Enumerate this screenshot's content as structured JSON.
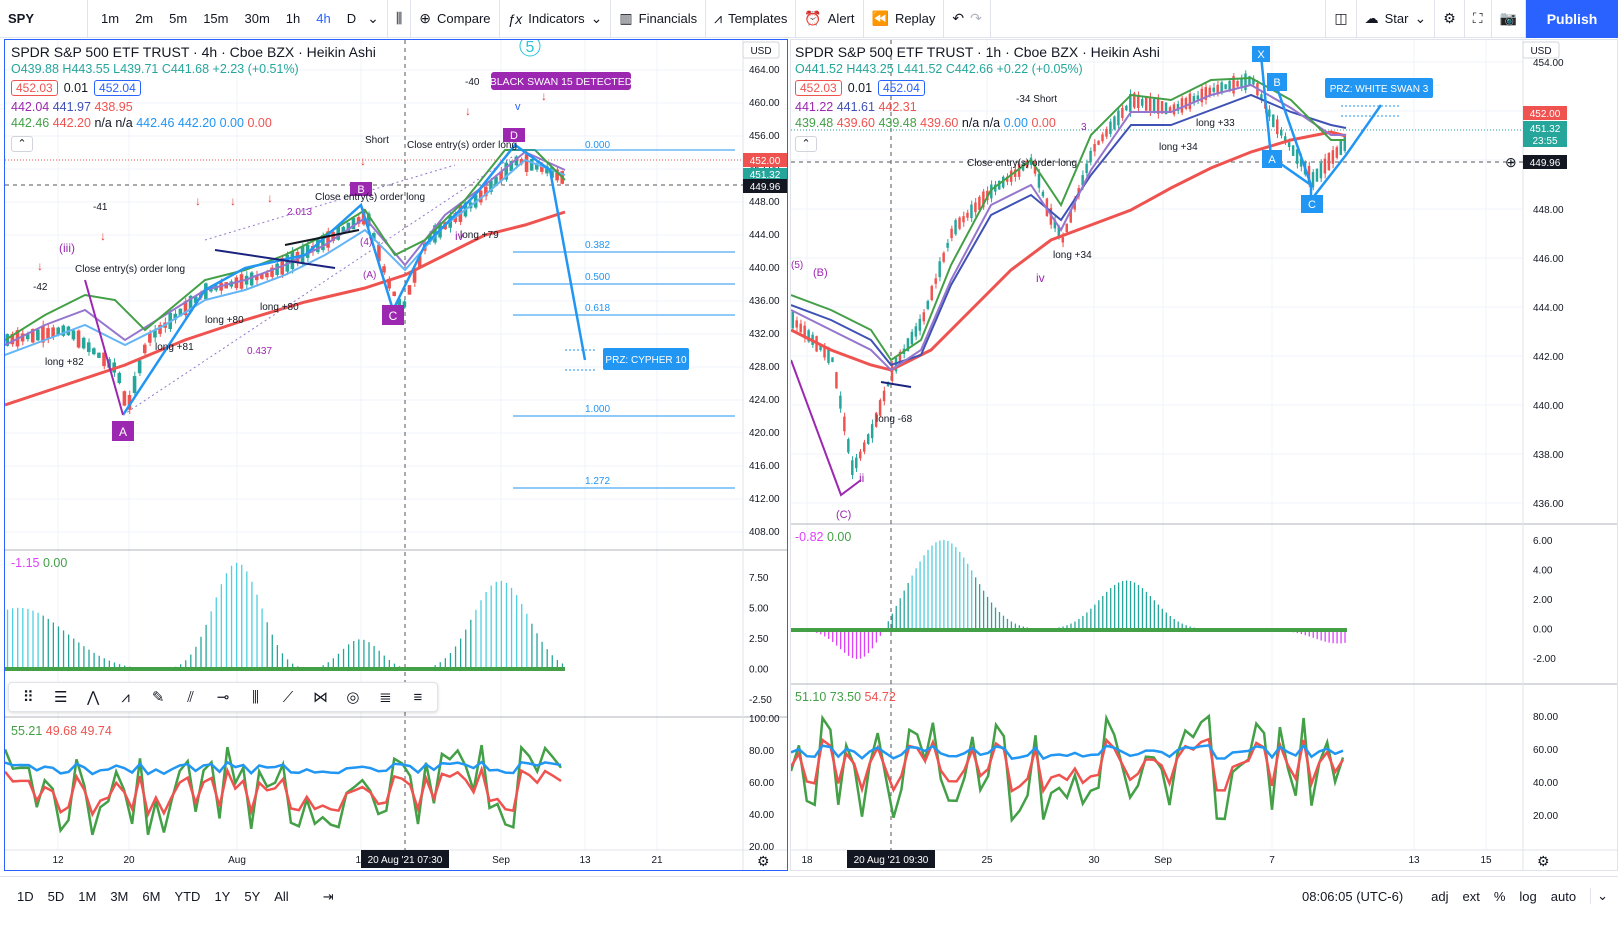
{
  "toolbar": {
    "symbol": "SPY",
    "intervals": [
      "1m",
      "2m",
      "5m",
      "15m",
      "30m",
      "1h",
      "4h",
      "D"
    ],
    "active_interval": "4h",
    "compare": "Compare",
    "indicators": "Indicators",
    "financials": "Financials",
    "templates": "Templates",
    "alert": "Alert",
    "replay": "Replay",
    "star": "Star",
    "publish": "Publish"
  },
  "left_chart": {
    "title": "SPDR S&P 500 ETF TRUST · 4h · Cboe BZX · Heikin Ashi",
    "ohlc": "O439.88 H443.55 L439.71 C441.68 +2.23 (+0.51%)",
    "box1": "452.03",
    "step": "0.01",
    "box2": "452.04",
    "ma_row1": [
      "442.04",
      "441.97",
      "438.95"
    ],
    "ma_row2": [
      "442.46",
      "442.20",
      "n/a",
      "n/a",
      "442.46",
      "442.20",
      "0.00",
      "0.00"
    ],
    "currency": "USD",
    "price_ticks": [
      "464.00",
      "460.00",
      "456.00",
      "452.00",
      "448.00",
      "444.00",
      "440.00",
      "436.00",
      "432.00",
      "428.00",
      "424.00",
      "420.00",
      "416.00",
      "412.00",
      "408.00"
    ],
    "price_labels": {
      "red": "452.00",
      "green": "451.32",
      "dark": "449.96"
    },
    "fib_levels": [
      "0.000",
      "0.382",
      "0.500",
      "0.618",
      "1.000",
      "1.272"
    ],
    "prz_label": "PRZ: CYPHER 10",
    "black_swan": "BLACK SWAN 15 DETECTED",
    "osc_value": [
      "-1.15",
      "0.00"
    ],
    "osc_ticks": [
      "7.50",
      "5.00",
      "2.50",
      "0.00",
      "-2.50"
    ],
    "rsi_values": [
      "55.21",
      "49.68",
      "49.74"
    ],
    "rsi_ticks": [
      "100.00",
      "80.00",
      "60.00",
      "40.00",
      "20.00"
    ],
    "x_labels": [
      "12",
      "20",
      "Aug",
      "16",
      "Sep",
      "13",
      "21"
    ],
    "crosshair_date": "20 Aug '21   07:30",
    "points": [
      "A",
      "B",
      "C",
      "D"
    ],
    "annotations": [
      "long +82",
      "long +81",
      "long +80",
      "long +80",
      "long +79",
      "Short",
      "-40",
      "-41",
      "-42",
      "Close entry(s) order long",
      "2.013",
      "0.437",
      "(iii)",
      "iv",
      "(4)",
      "(A)",
      "v",
      "5"
    ]
  },
  "right_chart": {
    "title": "SPDR S&P 500 ETF TRUST · 1h · Cboe BZX · Heikin Ashi",
    "ohlc": "O441.52 H443.25 L441.52 C442.66 +0.22 (+0.05%)",
    "box1": "452.03",
    "step": "0.01",
    "box2": "452.04",
    "ma_row1": [
      "441.22",
      "441.61",
      "442.31"
    ],
    "ma_row2": [
      "439.48",
      "439.60",
      "439.48",
      "439.60",
      "n/a",
      "n/a",
      "0.00",
      "0.00"
    ],
    "currency": "USD",
    "price_ticks": [
      "454.00",
      "452.00",
      "450.00",
      "448.00",
      "446.00",
      "444.00",
      "442.00",
      "440.00",
      "438.00",
      "436.00"
    ],
    "price_labels": {
      "red": "452.00",
      "green": "451.32",
      "time": "23:55",
      "dark": "449.96"
    },
    "prz_label": "PRZ: WHITE SWAN 3",
    "osc_value": [
      "-0.82",
      "0.00"
    ],
    "osc_ticks": [
      "6.00",
      "4.00",
      "2.00",
      "0.00",
      "-2.00"
    ],
    "rsi_values": [
      "51.10",
      "73.50",
      "54.72"
    ],
    "rsi_ticks": [
      "80.00",
      "60.00",
      "40.00",
      "20.00"
    ],
    "x_labels": [
      "18",
      "25",
      "30",
      "Sep",
      "7",
      "13",
      "15"
    ],
    "crosshair_date": "20 Aug '21   09:30",
    "points": [
      "X",
      "A",
      "B",
      "C"
    ],
    "annotations": [
      "long -68",
      "long +34",
      "long +33",
      "long +34",
      "-34 Short",
      "Close entry(s) order long",
      "ii",
      "iv",
      "(B)",
      "(C)",
      "(5)",
      "3"
    ]
  },
  "bottombar": {
    "ranges": [
      "1D",
      "5D",
      "1M",
      "3M",
      "6M",
      "YTD",
      "1Y",
      "5Y",
      "All"
    ],
    "time": "08:06:05 (UTC-6)",
    "adj": "adj",
    "ext": "ext",
    "pct": "%",
    "log": "log",
    "auto": "auto"
  },
  "colors": {
    "accent": "#2962ff",
    "up": "#26a69a",
    "down": "#ef5350",
    "purple": "#9c27b0",
    "teal": "#4dd0e1",
    "magenta": "#e040fb",
    "green_line": "#43a047",
    "red_line": "#ef5350",
    "blue_line": "#2196f3"
  }
}
